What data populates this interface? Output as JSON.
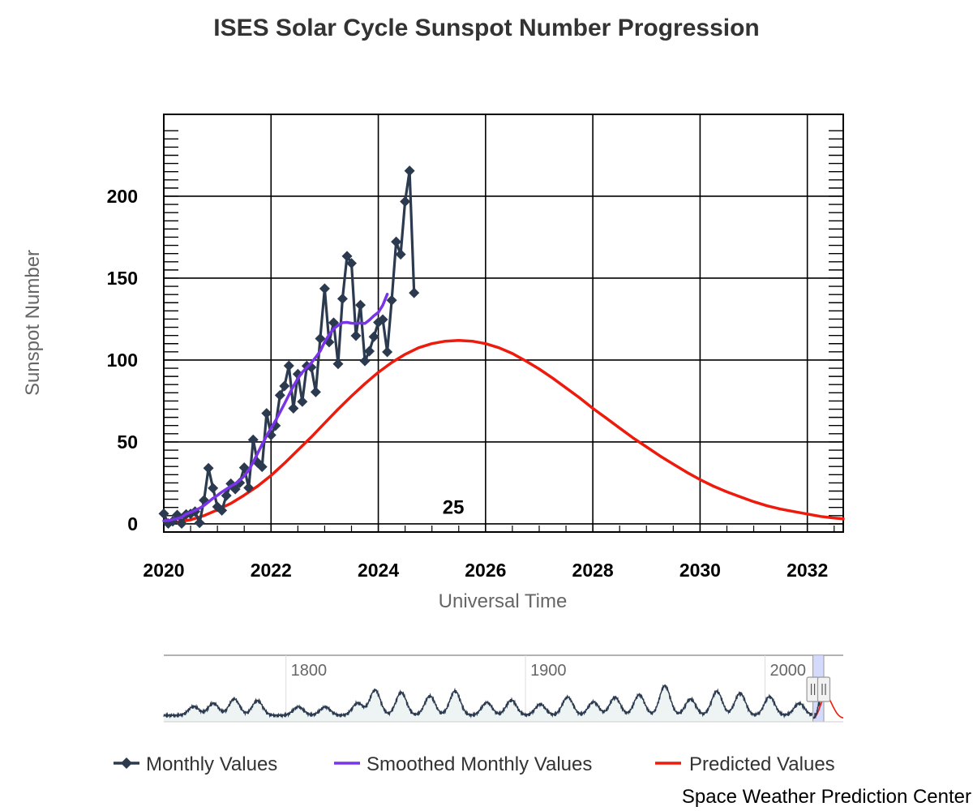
{
  "chart_data": {
    "type": "line",
    "title": "ISES Solar Cycle Sunspot Number Progression",
    "xlabel": "Universal Time",
    "ylabel": "Sunspot Number",
    "xlim": [
      2020.0,
      2032.67
    ],
    "ylim": [
      -5,
      250
    ],
    "x_ticks": [
      2020,
      2022,
      2024,
      2026,
      2028,
      2030,
      2032
    ],
    "y_ticks": [
      0,
      50,
      100,
      150,
      200
    ],
    "grid": true,
    "cycle_label": "25",
    "cycle_label_at": [
      2025.4,
      10
    ],
    "legend": {
      "placement": "bottom",
      "items": [
        {
          "label": "Monthly Values",
          "color": "#2b3a4f",
          "marker": "diamond"
        },
        {
          "label": "Smoothed Monthly Values",
          "color": "#7a34e8"
        },
        {
          "label": "Predicted Values",
          "color": "#ee1a0c"
        }
      ]
    },
    "series": [
      {
        "name": "Monthly Values",
        "color": "#2b3a4f",
        "marker": "diamond",
        "x": [
          2020.0,
          2020.083,
          2020.167,
          2020.25,
          2020.333,
          2020.417,
          2020.5,
          2020.583,
          2020.667,
          2020.75,
          2020.833,
          2020.917,
          2021.0,
          2021.083,
          2021.167,
          2021.25,
          2021.333,
          2021.417,
          2021.5,
          2021.583,
          2021.667,
          2021.75,
          2021.833,
          2021.917,
          2022.0,
          2022.083,
          2022.167,
          2022.25,
          2022.333,
          2022.417,
          2022.5,
          2022.583,
          2022.667,
          2022.75,
          2022.833,
          2022.917,
          2023.0,
          2023.083,
          2023.167,
          2023.25,
          2023.333,
          2023.417,
          2023.5,
          2023.583,
          2023.667,
          2023.75,
          2023.833,
          2023.917,
          2024.0,
          2024.083,
          2024.167,
          2024.25,
          2024.333,
          2024.417,
          2024.5,
          2024.583,
          2024.667
        ],
        "values": [
          6.2,
          0.2,
          1.5,
          5.4,
          0.2,
          5.8,
          6.1,
          7.5,
          0.6,
          14.4,
          34.0,
          21.8,
          10.4,
          8.2,
          17.2,
          24.5,
          21.2,
          25.0,
          34.3,
          22.0,
          51.3,
          37.4,
          34.8,
          67.5,
          54.2,
          59.9,
          78.5,
          84.1,
          96.5,
          70.5,
          91.4,
          74.6,
          96.4,
          95.6,
          80.5,
          113.1,
          143.6,
          110.9,
          122.8,
          97.6,
          137.4,
          163.4,
          159.1,
          114.8,
          133.6,
          99.4,
          105.4,
          114.2,
          123.0,
          124.7,
          104.9,
          136.5,
          172.2,
          164.5,
          196.8,
          215.5,
          141.0
        ]
      },
      {
        "name": "Smoothed Monthly Values",
        "color": "#7a34e8",
        "x": [
          2020.0,
          2020.083,
          2020.167,
          2020.25,
          2020.333,
          2020.417,
          2020.5,
          2020.583,
          2020.667,
          2020.75,
          2020.833,
          2020.917,
          2021.0,
          2021.083,
          2021.167,
          2021.25,
          2021.333,
          2021.417,
          2021.5,
          2021.583,
          2021.667,
          2021.75,
          2021.833,
          2021.917,
          2022.0,
          2022.083,
          2022.167,
          2022.25,
          2022.333,
          2022.417,
          2022.5,
          2022.583,
          2022.667,
          2022.75,
          2022.833,
          2022.917,
          2023.0,
          2023.083,
          2023.167,
          2023.25,
          2023.333,
          2023.417,
          2023.5,
          2023.583,
          2023.667,
          2023.75,
          2023.833,
          2023.917,
          2024.0,
          2024.083,
          2024.167
        ],
        "values": [
          1.8,
          2.0,
          2.6,
          3.2,
          4.0,
          6.0,
          7.0,
          8.2,
          9.5,
          11.2,
          13.3,
          15.6,
          17.4,
          19.4,
          21.2,
          23.0,
          24.5,
          26.6,
          29.2,
          32.7,
          37.7,
          43.0,
          48.5,
          53.7,
          58.4,
          63.0,
          68.1,
          73.3,
          78.7,
          84.1,
          88.8,
          92.5,
          95.5,
          98.2,
          101.7,
          105.4,
          111.0,
          115.4,
          119.1,
          121.2,
          122.8,
          123.0,
          122.5,
          122.4,
          122.6,
          122.3,
          124.4,
          127.0,
          129.1,
          133.5,
          140.2
        ]
      },
      {
        "name": "Predicted Values",
        "color": "#ee1a0c",
        "x": [
          2020.25,
          2020.5,
          2020.75,
          2021.0,
          2021.25,
          2021.5,
          2021.75,
          2022.0,
          2022.25,
          2022.5,
          2022.75,
          2023.0,
          2023.25,
          2023.5,
          2023.75,
          2024.0,
          2024.25,
          2024.5,
          2024.75,
          2025.0,
          2025.25,
          2025.5,
          2025.75,
          2026.0,
          2026.25,
          2026.5,
          2026.75,
          2027.0,
          2027.25,
          2027.5,
          2027.75,
          2028.0,
          2028.25,
          2028.5,
          2028.75,
          2029.0,
          2029.25,
          2029.5,
          2029.75,
          2030.0,
          2030.25,
          2030.5,
          2030.75,
          2031.0,
          2031.25,
          2031.5,
          2031.75,
          2032.0,
          2032.25,
          2032.5,
          2032.67
        ],
        "values": [
          1.0,
          2.5,
          5.0,
          8.5,
          12.5,
          17.5,
          23.0,
          29.5,
          37.0,
          45.0,
          53.0,
          61.5,
          70.0,
          78.0,
          85.5,
          92.5,
          98.5,
          103.5,
          107.5,
          110.0,
          111.5,
          112.0,
          111.5,
          110.0,
          107.5,
          104.0,
          99.5,
          94.5,
          89.0,
          83.0,
          77.0,
          70.5,
          64.5,
          58.5,
          52.5,
          47.0,
          41.5,
          36.5,
          31.5,
          27.0,
          23.0,
          19.5,
          16.5,
          13.5,
          11.0,
          9.0,
          7.5,
          6.0,
          4.5,
          3.5,
          3.0
        ]
      }
    ],
    "navigator": {
      "tick_labels": [
        "1800",
        "1900",
        "2000"
      ],
      "series_color": "#2b3a4f",
      "prediction_color": "#ee1a0c",
      "selection_color": "#cdd3fb"
    }
  },
  "credit": "Space Weather Prediction Center"
}
